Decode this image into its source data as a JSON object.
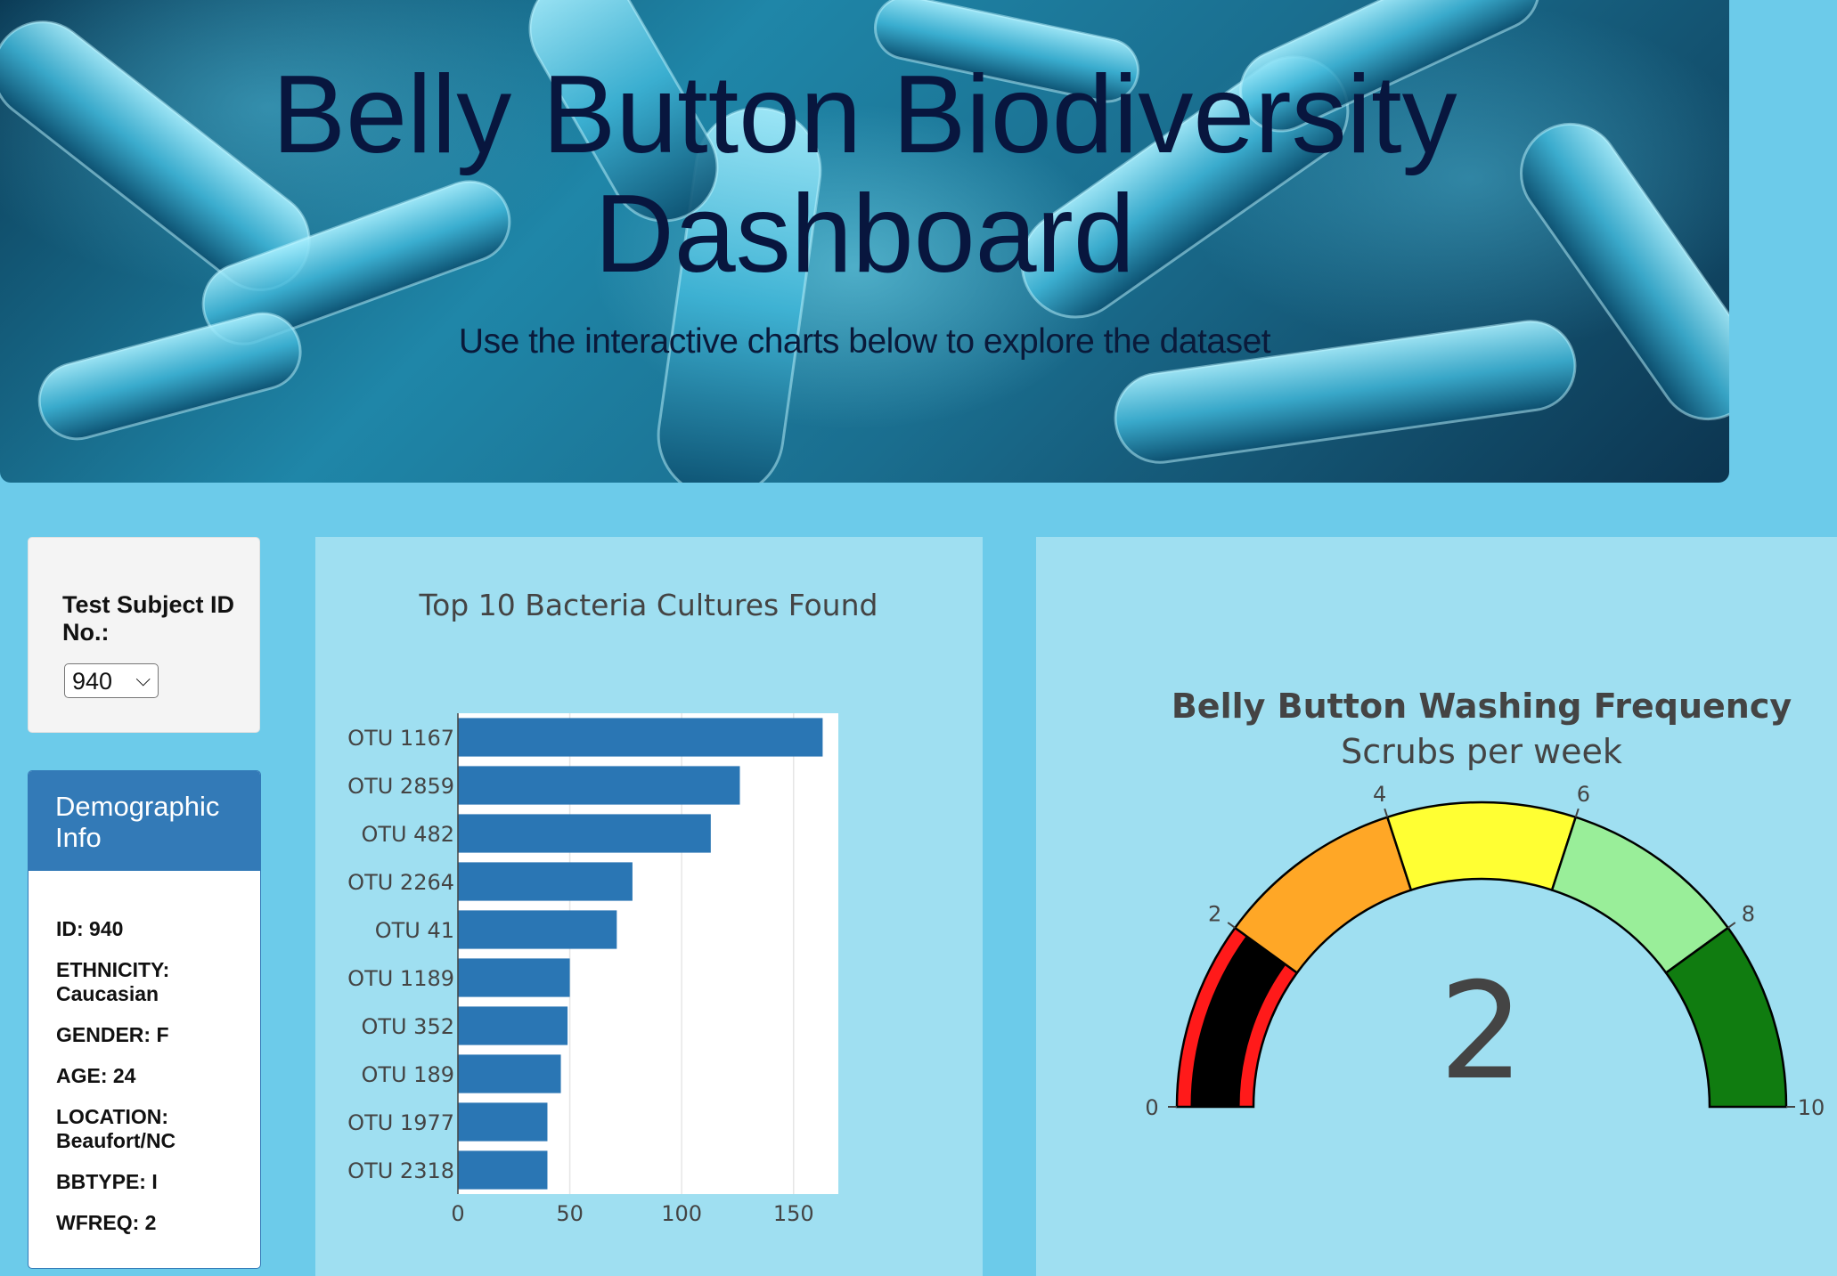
{
  "header": {
    "title": "Belly Button Biodiversity Dashboard",
    "subtitle": "Use the interactive charts below to explore the dataset"
  },
  "selector": {
    "label": "Test Subject ID No.:",
    "selected": "940"
  },
  "demographics": {
    "heading": "Demographic Info",
    "items": [
      "ID: 940",
      "ETHNICITY: Caucasian",
      "GENDER: F",
      "AGE: 24",
      "LOCATION: Beaufort/NC",
      "BBTYPE: I",
      "WFREQ: 2"
    ]
  },
  "colors": {
    "page_bg": "#6ccbea",
    "panel_bg": "#9fdff1",
    "bar": "#2a76b4",
    "demo_header": "#337ab7",
    "title_text": "#08163e"
  },
  "chart_data": [
    {
      "type": "bar",
      "orientation": "horizontal",
      "title": "Top 10 Bacteria Cultures Found",
      "categories": [
        "OTU 1167",
        "OTU 2859",
        "OTU 482",
        "OTU 2264",
        "OTU 41",
        "OTU 1189",
        "OTU 352",
        "OTU 189",
        "OTU 1977",
        "OTU 2318"
      ],
      "values": [
        163,
        126,
        113,
        78,
        71,
        50,
        49,
        46,
        40,
        40
      ],
      "xlim": [
        0,
        170
      ],
      "xticks": [
        0,
        50,
        100,
        150
      ],
      "grid": true
    },
    {
      "type": "gauge",
      "title": "Belly Button Washing Frequency",
      "subtitle": "Scrubs per week",
      "value": 2,
      "range": [
        0,
        10
      ],
      "ticks": [
        0,
        2,
        4,
        6,
        8,
        10
      ],
      "steps": [
        {
          "range": [
            0,
            2
          ],
          "color": "#ff1a1a"
        },
        {
          "range": [
            2,
            4
          ],
          "color": "#ffa726"
        },
        {
          "range": [
            4,
            6
          ],
          "color": "#ffff33"
        },
        {
          "range": [
            6,
            8
          ],
          "color": "#99ee99"
        },
        {
          "range": [
            8,
            10
          ],
          "color": "#107c10"
        }
      ],
      "bar_color": "#000000"
    }
  ]
}
